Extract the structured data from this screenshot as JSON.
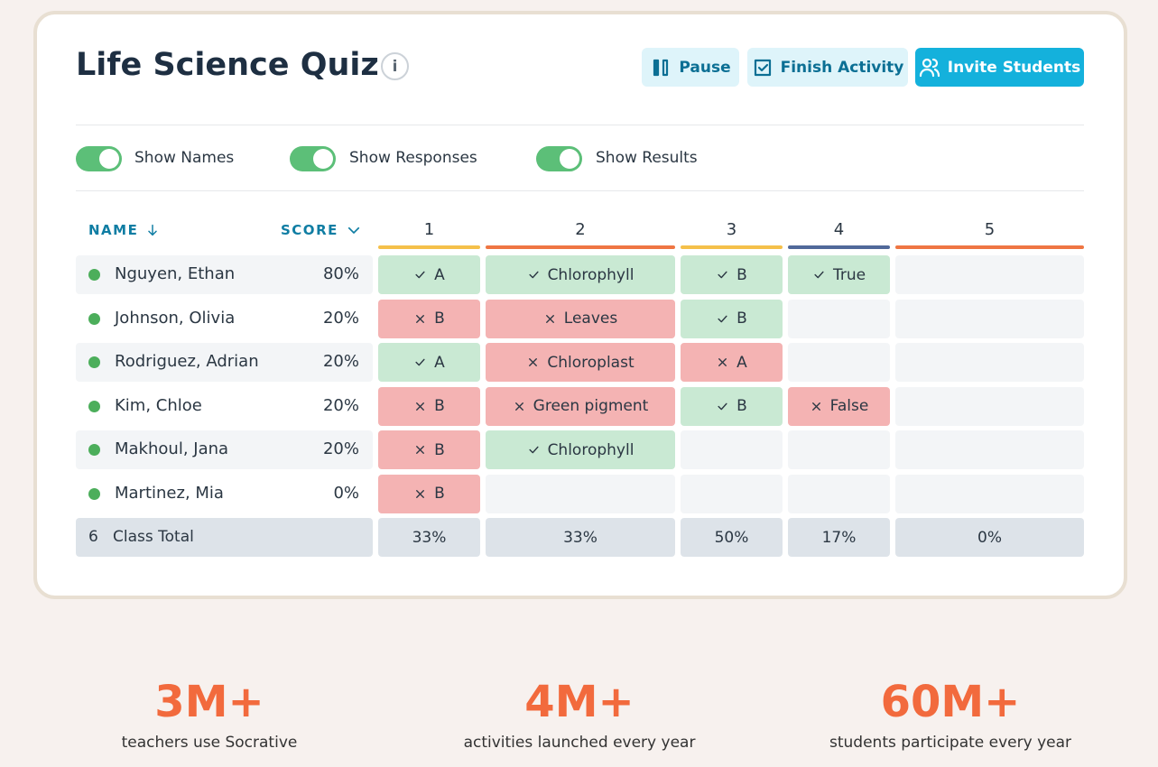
{
  "header": {
    "title": "Life Science Quiz"
  },
  "buttons": [
    "Pause",
    "Finish Activity",
    "Invite Students"
  ],
  "toggles": [
    "Show Names",
    "Show Responses",
    "Show Results"
  ],
  "table": {
    "name_header": "NAME",
    "score_header": "SCORE",
    "questions": [
      {
        "label": "1",
        "color": "#f5c04a"
      },
      {
        "label": "2",
        "color": "#ef7643"
      },
      {
        "label": "3",
        "color": "#f5c04a"
      },
      {
        "label": "4",
        "color": "#51699a"
      },
      {
        "label": "5",
        "color": "#ef7643"
      }
    ],
    "rows": [
      {
        "name": "Nguyen, Ethan",
        "score": "80%",
        "answers": [
          {
            "text": "A",
            "correct": true
          },
          {
            "text": "Chlorophyll",
            "correct": true
          },
          {
            "text": "B",
            "correct": true
          },
          {
            "text": "True",
            "correct": true
          },
          null
        ]
      },
      {
        "name": "Johnson, Olivia",
        "score": "20%",
        "answers": [
          {
            "text": "B",
            "correct": false
          },
          {
            "text": "Leaves",
            "correct": false
          },
          {
            "text": "B",
            "correct": true
          },
          null,
          null
        ]
      },
      {
        "name": "Rodriguez, Adrian",
        "score": "20%",
        "answers": [
          {
            "text": "A",
            "correct": true
          },
          {
            "text": "Chloroplast",
            "correct": false
          },
          {
            "text": "A",
            "correct": false
          },
          null,
          null
        ]
      },
      {
        "name": "Kim, Chloe",
        "score": "20%",
        "answers": [
          {
            "text": "B",
            "correct": false
          },
          {
            "text": "Green pigment",
            "correct": false
          },
          {
            "text": "B",
            "correct": true
          },
          {
            "text": "False",
            "correct": false
          },
          null
        ]
      },
      {
        "name": "Makhoul, Jana",
        "score": "20%",
        "answers": [
          {
            "text": "B",
            "correct": false
          },
          {
            "text": "Chlorophyll",
            "correct": true
          },
          null,
          null,
          null
        ]
      },
      {
        "name": "Martinez, Mia",
        "score": "0%",
        "answers": [
          {
            "text": "B",
            "correct": false
          },
          null,
          null,
          null,
          null
        ]
      }
    ],
    "total": {
      "count": "6",
      "label": "Class Total",
      "values": [
        "33%",
        "33%",
        "50%",
        "17%",
        "0%"
      ]
    }
  },
  "stats": [
    {
      "value": "3M+",
      "label": "teachers use Socrative"
    },
    {
      "value": "4M+",
      "label": "activities launched every year"
    },
    {
      "value": "60M+",
      "label": "students participate every year"
    }
  ]
}
